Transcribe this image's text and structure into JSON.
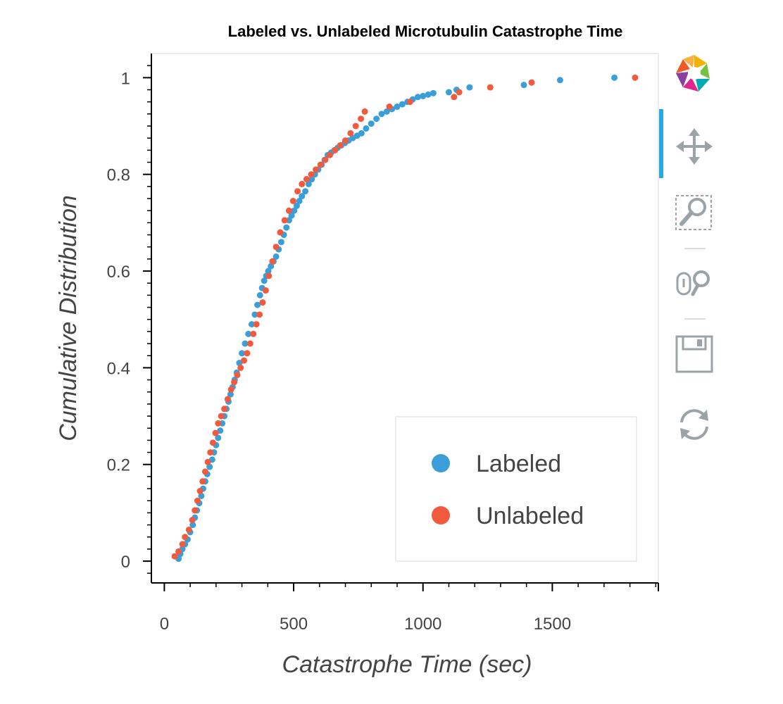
{
  "chart_data": {
    "type": "scatter",
    "title": "Labeled vs. Unlabeled Microtubulin Catastrophe Time",
    "xlabel": "Catastrophe Time (sec)",
    "ylabel": "Cumulative Distribution",
    "xlim": [
      -50,
      1910
    ],
    "ylim": [
      -0.045,
      1.05
    ],
    "xticks": [
      0,
      500,
      1000,
      1500
    ],
    "xtick_labels": [
      "0",
      "500",
      "1000",
      "1500"
    ],
    "yticks": [
      0,
      0.2,
      0.4,
      0.6,
      0.8,
      1
    ],
    "ytick_labels": [
      "0",
      "0.2",
      "0.4",
      "0.6",
      "0.8",
      "1"
    ],
    "grid": false,
    "legend_position": "bottom-right",
    "series": [
      {
        "name": "Labeled",
        "color": "#3a9ed8",
        "x": [
          55,
          62,
          70,
          80,
          90,
          100,
          110,
          118,
          126,
          135,
          143,
          150,
          158,
          166,
          175,
          185,
          192,
          200,
          208,
          216,
          224,
          232,
          240,
          248,
          256,
          264,
          272,
          280,
          290,
          300,
          312,
          325,
          338,
          350,
          360,
          370,
          378,
          386,
          394,
          402,
          412,
          422,
          432,
          442,
          452,
          462,
          472,
          482,
          492,
          502,
          512,
          522,
          532,
          545,
          558,
          570,
          582,
          595,
          608,
          620,
          632,
          645,
          658,
          670,
          684,
          698,
          712,
          728,
          745,
          762,
          780,
          800,
          820,
          840,
          860,
          880,
          900,
          920,
          940,
          960,
          980,
          1000,
          1020,
          1040,
          1100,
          1130,
          1180,
          1390,
          1420,
          1530,
          1740
        ],
        "y": [
          0.005,
          0.015,
          0.025,
          0.035,
          0.045,
          0.06,
          0.075,
          0.09,
          0.105,
          0.12,
          0.135,
          0.15,
          0.165,
          0.18,
          0.195,
          0.21,
          0.225,
          0.24,
          0.255,
          0.27,
          0.285,
          0.3,
          0.315,
          0.33,
          0.345,
          0.36,
          0.375,
          0.39,
          0.41,
          0.43,
          0.45,
          0.47,
          0.49,
          0.51,
          0.53,
          0.55,
          0.565,
          0.58,
          0.59,
          0.6,
          0.61,
          0.62,
          0.63,
          0.645,
          0.66,
          0.675,
          0.69,
          0.705,
          0.715,
          0.725,
          0.735,
          0.745,
          0.755,
          0.765,
          0.78,
          0.79,
          0.8,
          0.81,
          0.82,
          0.83,
          0.84,
          0.845,
          0.85,
          0.855,
          0.86,
          0.865,
          0.87,
          0.875,
          0.88,
          0.885,
          0.895,
          0.905,
          0.915,
          0.925,
          0.93,
          0.935,
          0.94,
          0.945,
          0.95,
          0.955,
          0.96,
          0.962,
          0.965,
          0.968,
          0.97,
          0.975,
          0.98,
          0.985,
          0.99,
          0.995,
          1.0
        ]
      },
      {
        "name": "Unlabeled",
        "color": "#f15a3c",
        "x": [
          40,
          55,
          70,
          80,
          95,
          108,
          118,
          128,
          138,
          148,
          158,
          168,
          178,
          188,
          198,
          208,
          220,
          232,
          245,
          258,
          270,
          282,
          295,
          308,
          320,
          332,
          344,
          356,
          368,
          380,
          392,
          404,
          418,
          432,
          448,
          465,
          482,
          498,
          515,
          532,
          550,
          568,
          586,
          604,
          622,
          640,
          660,
          680,
          700,
          720,
          740,
          760,
          775,
          870,
          950,
          1120,
          1140,
          1260,
          1420,
          1820
        ],
        "y": [
          0.01,
          0.02,
          0.035,
          0.05,
          0.065,
          0.085,
          0.105,
          0.125,
          0.145,
          0.165,
          0.185,
          0.205,
          0.225,
          0.245,
          0.265,
          0.285,
          0.3,
          0.315,
          0.335,
          0.355,
          0.37,
          0.385,
          0.4,
          0.415,
          0.43,
          0.45,
          0.47,
          0.49,
          0.51,
          0.535,
          0.56,
          0.59,
          0.62,
          0.65,
          0.68,
          0.705,
          0.725,
          0.745,
          0.765,
          0.78,
          0.79,
          0.8,
          0.81,
          0.82,
          0.83,
          0.84,
          0.85,
          0.86,
          0.87,
          0.885,
          0.9,
          0.915,
          0.93,
          0.94,
          0.95,
          0.96,
          0.97,
          0.98,
          0.99,
          1.0
        ]
      }
    ]
  },
  "toolbar": {
    "tools": [
      "bokeh-logo-icon",
      "pan-icon",
      "box-zoom-icon",
      "wheel-zoom-icon",
      "save-icon",
      "reset-icon"
    ],
    "active_color": "#26aae1"
  }
}
